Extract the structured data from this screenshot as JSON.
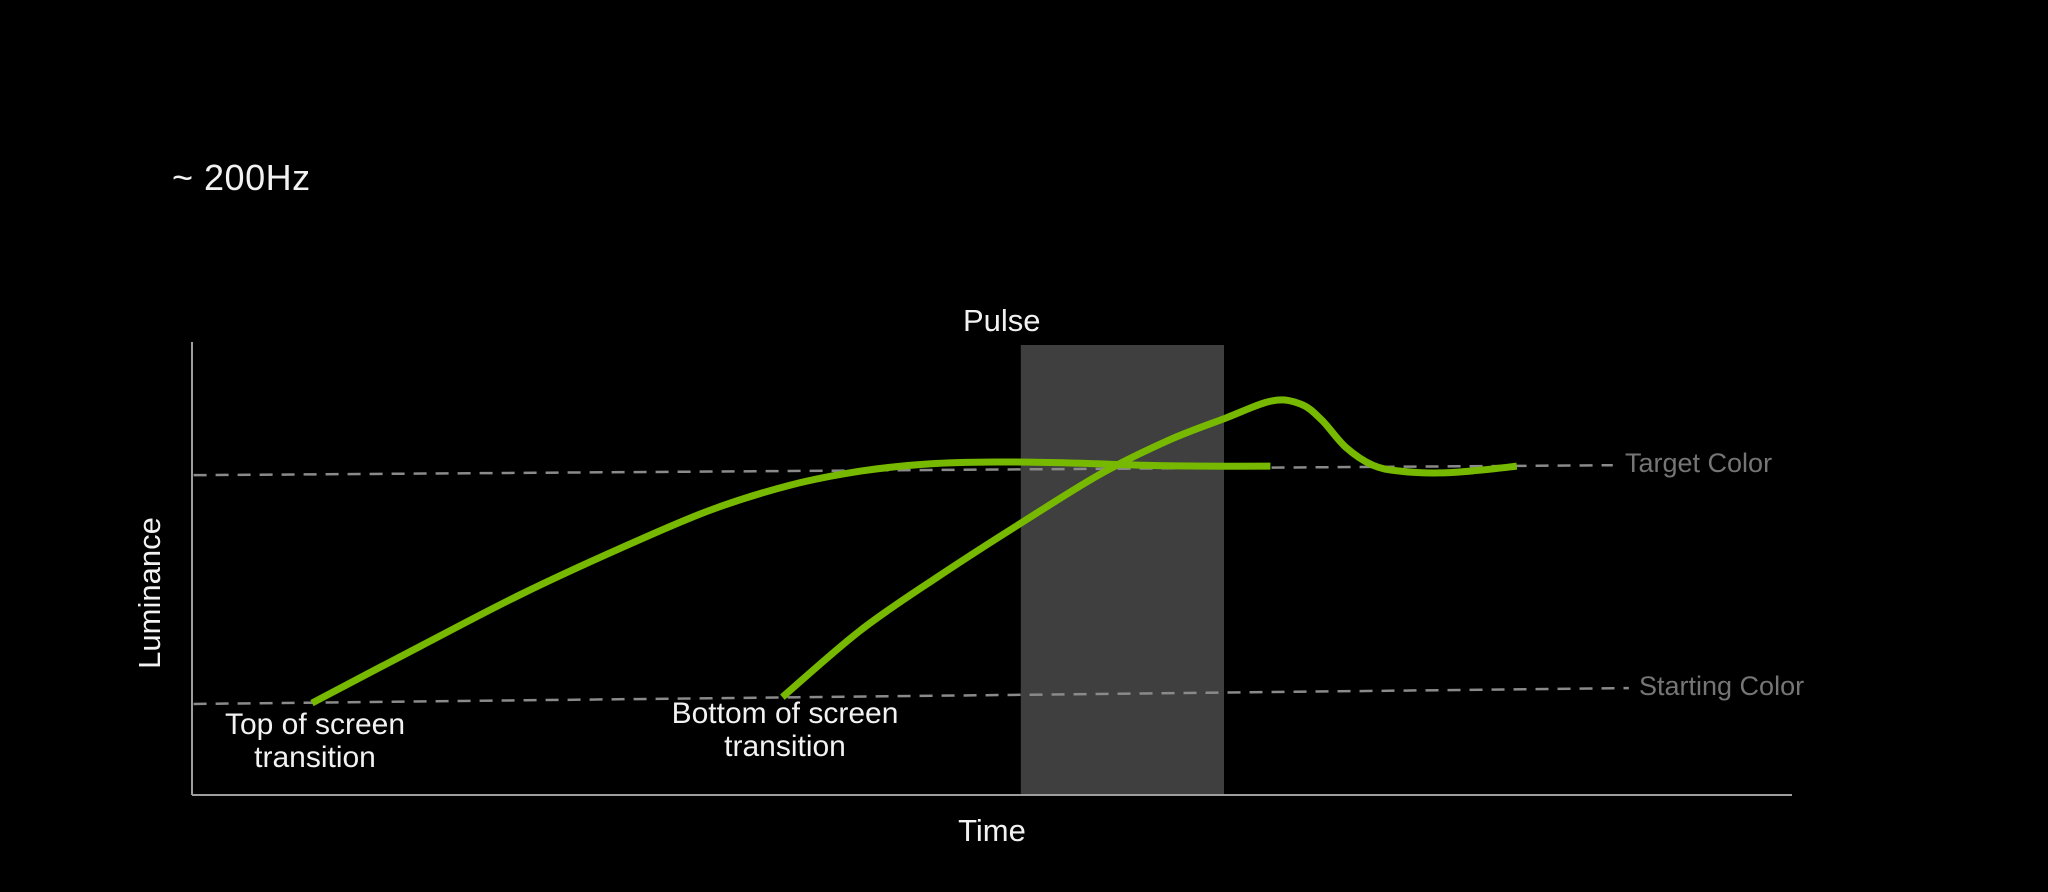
{
  "page": {
    "description": "Dark presentation-style chart showing display luminance over time for a strobed (pulsed) backlight transition",
    "refresh_rate_note": "~ 200Hz"
  },
  "axes": {
    "x_label": "Time",
    "y_label": "Luminance"
  },
  "labels": {
    "pulse": "Pulse",
    "top_transition_line1": "Top of screen",
    "top_transition_line2": "transition",
    "bottom_transition_line1": "Bottom of screen",
    "bottom_transition_line2": "transition",
    "target_color": "Target Color",
    "starting_color": "Starting Color"
  },
  "colors": {
    "background": "#000000",
    "curve_green": "#76b900",
    "pulse_band": "#3f3f3f",
    "axis": "#9e9e9e",
    "dashed_line": "#8a8a8a",
    "muted_label": "#757575",
    "text": "#f2f2f2"
  },
  "chart_data": {
    "type": "line",
    "title": "~ 200Hz",
    "xlabel": "Time",
    "ylabel": "Luminance",
    "x_axis_ticks": [],
    "y_axis_ticks": [],
    "grid": false,
    "legend": "none",
    "axes_note": "Conceptual diagram with no numeric ticks; point values are normalized: x = fraction along the Time axis, y = fraction of Luminance axis height",
    "reference_lines": [
      {
        "name": "Target Color",
        "style": "dashed",
        "t_start": 0.001,
        "t_end": 0.888,
        "level_start": 0.706,
        "level_end": 0.728
      },
      {
        "name": "Starting Color",
        "style": "dashed",
        "t_start": 0.001,
        "t_end": 0.898,
        "level_start": 0.201,
        "level_end": 0.236
      }
    ],
    "pulse_band": {
      "label": "Pulse",
      "t_start": 0.518,
      "t_end": 0.645
    },
    "series": [
      {
        "name": "Top of screen transition",
        "color": "#76b900",
        "points": [
          [
            0.075,
            0.203
          ],
          [
            0.143,
            0.329
          ],
          [
            0.205,
            0.442
          ],
          [
            0.268,
            0.545
          ],
          [
            0.324,
            0.629
          ],
          [
            0.374,
            0.684
          ],
          [
            0.418,
            0.715
          ],
          [
            0.461,
            0.731
          ],
          [
            0.505,
            0.735
          ],
          [
            0.549,
            0.733
          ],
          [
            0.593,
            0.728
          ],
          [
            0.633,
            0.726
          ],
          [
            0.674,
            0.726
          ]
        ]
      },
      {
        "name": "Bottom of screen transition",
        "color": "#76b900",
        "points": [
          [
            0.369,
            0.216
          ],
          [
            0.418,
            0.364
          ],
          [
            0.468,
            0.486
          ],
          [
            0.518,
            0.6
          ],
          [
            0.568,
            0.709
          ],
          [
            0.611,
            0.784
          ],
          [
            0.646,
            0.832
          ],
          [
            0.675,
            0.87
          ],
          [
            0.693,
            0.863
          ],
          [
            0.706,
            0.828
          ],
          [
            0.721,
            0.768
          ],
          [
            0.738,
            0.728
          ],
          [
            0.755,
            0.715
          ],
          [
            0.78,
            0.711
          ],
          [
            0.805,
            0.717
          ],
          [
            0.828,
            0.726
          ]
        ]
      }
    ]
  }
}
